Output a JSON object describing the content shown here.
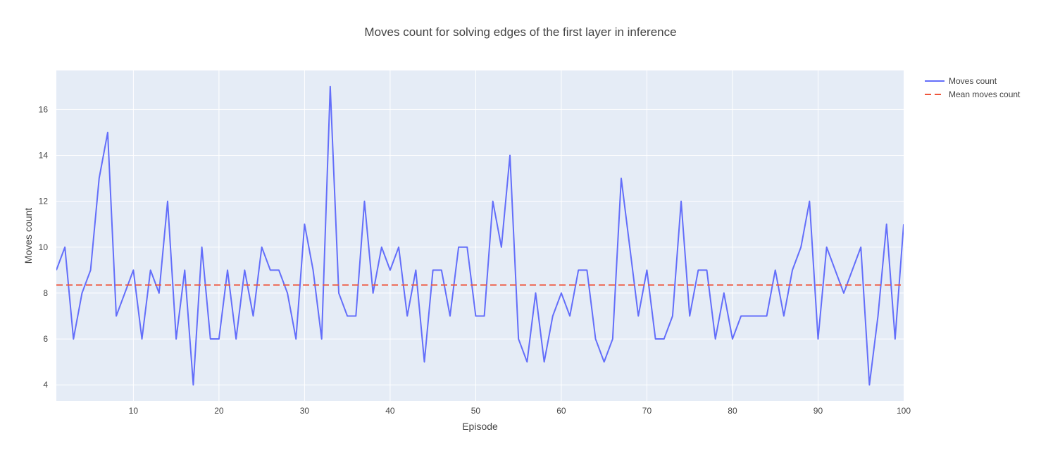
{
  "chart_data": {
    "type": "line",
    "title": "Moves count for solving edges of the first layer in inference",
    "xlabel": "Episode",
    "ylabel": "Moves count",
    "xlim": [
      1,
      100
    ],
    "ylim": [
      3.3,
      17.7
    ],
    "x_ticks": [
      10,
      20,
      30,
      40,
      50,
      60,
      70,
      80,
      90,
      100
    ],
    "y_ticks": [
      4,
      6,
      8,
      10,
      12,
      14,
      16
    ],
    "grid": true,
    "legend_position": "top-right",
    "background_color": "#E5ECF6",
    "series": [
      {
        "name": "Moves count",
        "color": "#636EFA",
        "style": "solid",
        "x": [
          1,
          2,
          3,
          4,
          5,
          6,
          7,
          8,
          9,
          10,
          11,
          12,
          13,
          14,
          15,
          16,
          17,
          18,
          19,
          20,
          21,
          22,
          23,
          24,
          25,
          26,
          27,
          28,
          29,
          30,
          31,
          32,
          33,
          34,
          35,
          36,
          37,
          38,
          39,
          40,
          41,
          42,
          43,
          44,
          45,
          46,
          47,
          48,
          49,
          50,
          51,
          52,
          53,
          54,
          55,
          56,
          57,
          58,
          59,
          60,
          61,
          62,
          63,
          64,
          65,
          66,
          67,
          68,
          69,
          70,
          71,
          72,
          73,
          74,
          75,
          76,
          77,
          78,
          79,
          80,
          81,
          82,
          83,
          84,
          85,
          86,
          87,
          88,
          89,
          90,
          91,
          92,
          93,
          94,
          95,
          96,
          97,
          98,
          99,
          100
        ],
        "values": [
          9,
          10,
          6,
          8,
          9,
          13,
          15,
          7,
          8,
          9,
          6,
          9,
          8,
          12,
          6,
          9,
          4,
          10,
          6,
          6,
          9,
          6,
          9,
          7,
          10,
          9,
          9,
          8,
          6,
          11,
          9,
          6,
          17,
          8,
          7,
          7,
          12,
          8,
          10,
          9,
          10,
          7,
          9,
          5,
          9,
          9,
          7,
          10,
          10,
          7,
          7,
          12,
          10,
          14,
          6,
          5,
          8,
          5,
          7,
          8,
          7,
          9,
          9,
          6,
          5,
          6,
          13,
          10,
          7,
          9,
          6,
          6,
          7,
          12,
          7,
          9,
          9,
          6,
          8,
          6,
          7,
          7,
          7,
          7,
          9,
          7,
          9,
          10,
          12,
          6,
          10,
          9,
          8,
          9,
          10,
          4,
          7,
          11,
          6,
          11
        ]
      },
      {
        "name": "Mean moves count",
        "color": "#EF553B",
        "style": "dash",
        "x": [
          1,
          100
        ],
        "values": [
          8.35,
          8.35
        ]
      }
    ]
  }
}
